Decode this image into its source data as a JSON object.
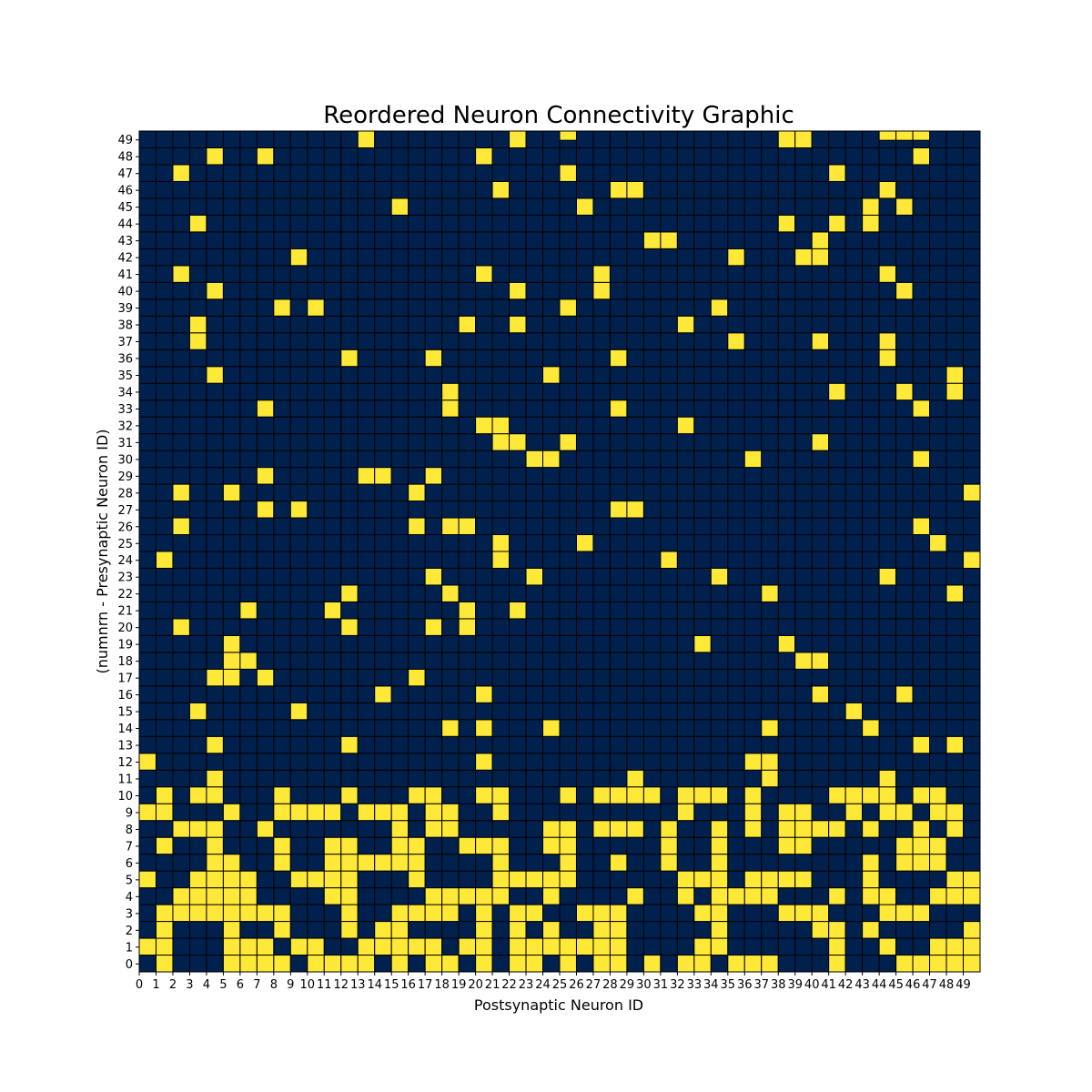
{
  "chart_data": {
    "type": "heatmap",
    "title": "Reordered Neuron Connectivity Graphic",
    "xlabel": "Postsynaptic Neuron ID",
    "ylabel": "(numnrn - Presynaptic Neuron ID)",
    "n": 50,
    "x_ticks": [
      "0",
      "1",
      "2",
      "3",
      "4",
      "5",
      "6",
      "7",
      "8",
      "9",
      "10",
      "11",
      "12",
      "13",
      "14",
      "15",
      "16",
      "17",
      "18",
      "19",
      "20",
      "21",
      "22",
      "23",
      "24",
      "25",
      "26",
      "27",
      "28",
      "29",
      "30",
      "31",
      "32",
      "33",
      "34",
      "35",
      "36",
      "37",
      "38",
      "39",
      "40",
      "41",
      "42",
      "43",
      "44",
      "45",
      "46",
      "47",
      "48",
      "49"
    ],
    "y_ticks": [
      "0",
      "1",
      "2",
      "3",
      "4",
      "5",
      "6",
      "7",
      "8",
      "9",
      "10",
      "11",
      "12",
      "13",
      "14",
      "15",
      "16",
      "17",
      "18",
      "19",
      "20",
      "21",
      "22",
      "23",
      "24",
      "25",
      "26",
      "27",
      "28",
      "29",
      "30",
      "31",
      "32",
      "33",
      "34",
      "35",
      "36",
      "37",
      "38",
      "39",
      "40",
      "41",
      "42",
      "43",
      "44",
      "45",
      "46",
      "47",
      "48",
      "49"
    ],
    "colors": {
      "off": "#00204d",
      "on": "#fee838",
      "grid": "#000000"
    },
    "connections": [
      [
        0,
        [
          1,
          5,
          6,
          7,
          8,
          10,
          11,
          12,
          13,
          15,
          17,
          18,
          20,
          22,
          23,
          25,
          27,
          28,
          30,
          32,
          33,
          35,
          36,
          37,
          41,
          45,
          46,
          47,
          48,
          49
        ]
      ],
      [
        1,
        [
          0,
          1,
          5,
          6,
          7,
          9,
          10,
          13,
          14,
          15,
          16,
          17,
          19,
          20,
          22,
          23,
          24,
          25,
          26,
          27,
          28,
          33,
          34,
          41,
          44,
          47,
          48,
          49
        ]
      ],
      [
        2,
        [
          1,
          5,
          8,
          12,
          14,
          15,
          20,
          22,
          24,
          27,
          28,
          34,
          40,
          41,
          43,
          49
        ]
      ],
      [
        3,
        [
          1,
          2,
          3,
          4,
          5,
          6,
          7,
          8,
          12,
          15,
          16,
          17,
          18,
          20,
          22,
          23,
          26,
          27,
          28,
          33,
          34,
          38,
          39,
          40,
          44,
          45,
          46
        ]
      ],
      [
        4,
        [
          2,
          3,
          4,
          5,
          6,
          11,
          12,
          17,
          18,
          19,
          20,
          21,
          24,
          29,
          32,
          34,
          35,
          36,
          37,
          41,
          43,
          44,
          47,
          48,
          49
        ]
      ],
      [
        5,
        [
          0,
          3,
          4,
          5,
          6,
          9,
          10,
          11,
          12,
          16,
          21,
          22,
          23,
          24,
          25,
          32,
          33,
          34,
          36,
          37,
          38,
          39,
          43,
          48,
          49
        ]
      ],
      [
        6,
        [
          4,
          5,
          8,
          11,
          12,
          13,
          14,
          15,
          16,
          21,
          25,
          28,
          31,
          34,
          43,
          45,
          46,
          47
        ]
      ],
      [
        7,
        [
          1,
          4,
          8,
          11,
          12,
          15,
          16,
          19,
          20,
          21,
          24,
          25,
          31,
          34,
          38,
          39,
          45,
          46,
          47
        ]
      ],
      [
        8,
        [
          2,
          3,
          4,
          7,
          15,
          17,
          18,
          24,
          25,
          27,
          28,
          29,
          31,
          34,
          36,
          38,
          39,
          40,
          41,
          43,
          46,
          48
        ]
      ],
      [
        9,
        [
          0,
          1,
          5,
          8,
          9,
          10,
          11,
          13,
          14,
          15,
          17,
          18,
          21,
          32,
          36,
          38,
          39,
          42,
          44,
          45,
          47,
          48
        ]
      ],
      [
        10,
        [
          1,
          3,
          4,
          8,
          12,
          16,
          17,
          20,
          21,
          25,
          27,
          28,
          29,
          30,
          32,
          33,
          34,
          36,
          41,
          42,
          43,
          44,
          46,
          47
        ]
      ],
      [
        11,
        [
          4,
          29,
          37,
          44
        ]
      ],
      [
        12,
        [
          0,
          20,
          36,
          37
        ]
      ],
      [
        13,
        [
          4,
          12,
          46,
          48
        ]
      ],
      [
        14,
        [
          18,
          20,
          24,
          37,
          43
        ]
      ],
      [
        15,
        [
          3,
          9,
          42
        ]
      ],
      [
        16,
        [
          14,
          20,
          40,
          45
        ]
      ],
      [
        17,
        [
          4,
          5,
          7,
          16
        ]
      ],
      [
        18,
        [
          5,
          6,
          39,
          40
        ]
      ],
      [
        19,
        [
          5,
          33,
          38
        ]
      ],
      [
        20,
        [
          2,
          12,
          17,
          19
        ]
      ],
      [
        21,
        [
          6,
          11,
          19,
          22
        ]
      ],
      [
        22,
        [
          12,
          18,
          37,
          48
        ]
      ],
      [
        23,
        [
          17,
          23,
          34,
          44
        ]
      ],
      [
        24,
        [
          1,
          21,
          31,
          49
        ]
      ],
      [
        25,
        [
          21,
          26,
          47
        ]
      ],
      [
        26,
        [
          2,
          16,
          18,
          19,
          46
        ]
      ],
      [
        27,
        [
          7,
          9,
          28,
          29
        ]
      ],
      [
        28,
        [
          2,
          5,
          16,
          49
        ]
      ],
      [
        29,
        [
          7,
          13,
          14,
          17
        ]
      ],
      [
        30,
        [
          23,
          24,
          36,
          46
        ]
      ],
      [
        31,
        [
          21,
          22,
          25,
          40
        ]
      ],
      [
        32,
        [
          20,
          21,
          32
        ]
      ],
      [
        33,
        [
          7,
          18,
          28,
          46
        ]
      ],
      [
        34,
        [
          18,
          41,
          45,
          48
        ]
      ],
      [
        35,
        [
          4,
          24,
          48
        ]
      ],
      [
        36,
        [
          12,
          17,
          28,
          44
        ]
      ],
      [
        37,
        [
          3,
          35,
          40,
          44
        ]
      ],
      [
        38,
        [
          3,
          19,
          22,
          32
        ]
      ],
      [
        39,
        [
          8,
          10,
          25,
          34
        ]
      ],
      [
        40,
        [
          4,
          22,
          27,
          45
        ]
      ],
      [
        41,
        [
          2,
          20,
          27,
          44
        ]
      ],
      [
        42,
        [
          9,
          35,
          39,
          40
        ]
      ],
      [
        43,
        [
          30,
          31,
          40
        ]
      ],
      [
        44,
        [
          3,
          38,
          41,
          43
        ]
      ],
      [
        45,
        [
          15,
          26,
          43,
          45
        ]
      ],
      [
        46,
        [
          21,
          28,
          29,
          44
        ]
      ],
      [
        47,
        [
          2,
          25,
          41
        ]
      ],
      [
        48,
        [
          4,
          7,
          20,
          46
        ]
      ],
      [
        49,
        [
          13,
          22,
          38,
          39
        ]
      ]
    ],
    "top_overflow_cells": [
      25,
      44,
      45,
      46
    ]
  }
}
